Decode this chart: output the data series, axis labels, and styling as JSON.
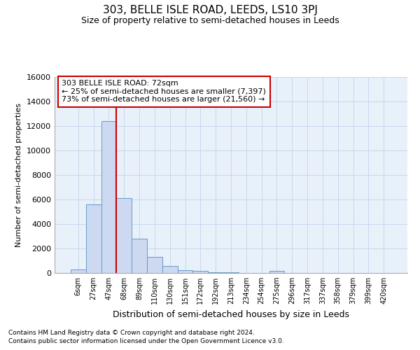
{
  "title": "303, BELLE ISLE ROAD, LEEDS, LS10 3PJ",
  "subtitle": "Size of property relative to semi-detached houses in Leeds",
  "xlabel": "Distribution of semi-detached houses by size in Leeds",
  "ylabel": "Number of semi-detached properties",
  "bar_labels": [
    "6sqm",
    "27sqm",
    "47sqm",
    "68sqm",
    "89sqm",
    "110sqm",
    "130sqm",
    "151sqm",
    "172sqm",
    "192sqm",
    "213sqm",
    "234sqm",
    "254sqm",
    "275sqm",
    "296sqm",
    "317sqm",
    "337sqm",
    "358sqm",
    "379sqm",
    "399sqm",
    "420sqm"
  ],
  "bar_values": [
    300,
    5600,
    12400,
    6100,
    2800,
    1300,
    600,
    250,
    150,
    80,
    50,
    0,
    0,
    150,
    0,
    0,
    0,
    0,
    0,
    0,
    0
  ],
  "bar_color": "#ccd9f0",
  "bar_edgecolor": "#6699cc",
  "vline_color": "#cc0000",
  "vline_bar_index": 3,
  "ylim": [
    0,
    16000
  ],
  "yticks": [
    0,
    2000,
    4000,
    6000,
    8000,
    10000,
    12000,
    14000,
    16000
  ],
  "annotation_title": "303 BELLE ISLE ROAD: 72sqm",
  "annotation_line1": "← 25% of semi-detached houses are smaller (7,397)",
  "annotation_line2": "73% of semi-detached houses are larger (21,560) →",
  "annotation_box_color": "#cc0000",
  "grid_color": "#c8d8ee",
  "bg_color": "#e8f0fa",
  "footer1": "Contains HM Land Registry data © Crown copyright and database right 2024.",
  "footer2": "Contains public sector information licensed under the Open Government Licence v3.0."
}
